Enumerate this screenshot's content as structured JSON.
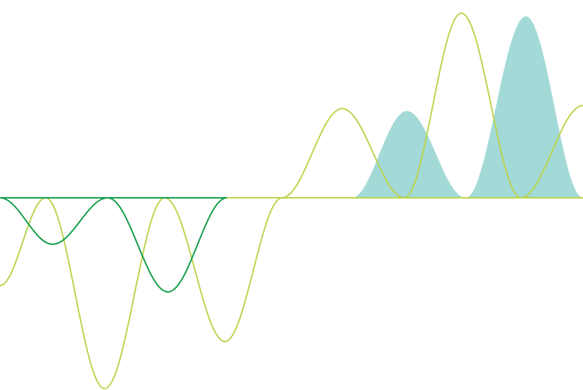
{
  "colors": {
    "background": "#ffffff",
    "lime_wave": "#bcd34a",
    "green_wave": "#109c48",
    "teal_fill": "#a3dad8",
    "baseline": "#bcd34a"
  },
  "chart_data": {
    "type": "line",
    "title": "",
    "xlabel": "",
    "ylabel": "",
    "grid": false,
    "axes_visible": false,
    "xlim": [
      0,
      9.2
    ],
    "ylim": [
      -3.0,
      3.1
    ],
    "series": [
      {
        "kind": "line",
        "color": "#bcd34a",
        "points": [
          [
            0.0,
            -1.38
          ],
          [
            0.72,
            0.0
          ],
          [
            1.65,
            -3.0
          ],
          [
            2.6,
            0.0
          ],
          [
            3.55,
            -2.26
          ],
          [
            4.45,
            0.0
          ],
          [
            5.4,
            1.45
          ],
          [
            6.38,
            0.0
          ],
          [
            7.28,
            3.0
          ],
          [
            8.22,
            0.0
          ],
          [
            9.2,
            1.5
          ]
        ]
      },
      {
        "kind": "line",
        "color": "#109c48",
        "points": [
          [
            0.0,
            0.0
          ],
          [
            0.83,
            -0.73
          ],
          [
            1.7,
            0.0
          ],
          [
            2.65,
            -1.48
          ],
          [
            3.58,
            0.0
          ]
        ]
      },
      {
        "kind": "filled-area",
        "color": "#a3dad8",
        "points": [
          [
            5.55,
            0.0
          ],
          [
            6.42,
            1.41
          ],
          [
            7.35,
            0.0
          ],
          [
            8.3,
            2.95
          ],
          [
            9.2,
            0.0
          ]
        ]
      }
    ]
  }
}
